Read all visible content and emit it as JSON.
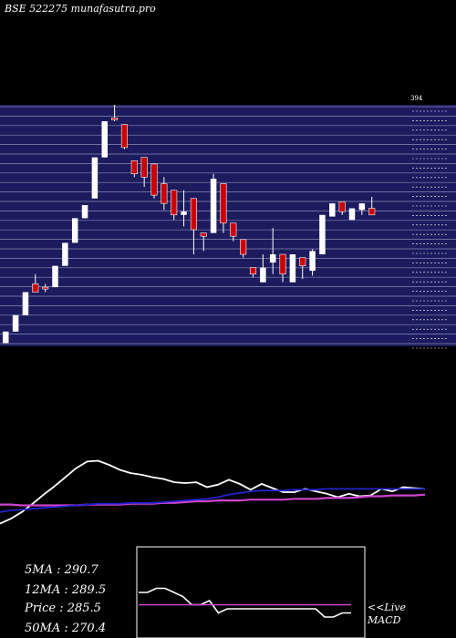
{
  "header": {
    "label": "BSE 522275 munafasutra.pro"
  },
  "colors": {
    "background": "#000000",
    "price_panel": "#1b1b5e",
    "grid_line": "#8a8ab5",
    "up_candle": "#ffffff",
    "down_candle": "#cc0000",
    "price_line": "#ffffff",
    "ma_long": "#cc44cc",
    "ma_mid": "#2222cc",
    "macd_signal": "#cc44cc",
    "macd_box_border": "#ffffff"
  },
  "stats": {
    "ma5": "5MA : 290.7",
    "ma12": "12MA : 289.5",
    "price": "Price   : 285.5",
    "ma50": "50MA : 270.4"
  },
  "macd_panel": {
    "live_label": "<<Live",
    "macd_label": "MACD"
  },
  "chart_data": [
    {
      "type": "candlestick",
      "title": "",
      "price_range": [
        247,
        394
      ],
      "top_tick_label": "394",
      "candles": [
        {
          "o": 249,
          "h": 256,
          "l": 249,
          "c": 256,
          "dir": "up"
        },
        {
          "o": 256,
          "h": 266,
          "l": 256,
          "c": 266,
          "dir": "up"
        },
        {
          "o": 266,
          "h": 280,
          "l": 266,
          "c": 280,
          "dir": "up"
        },
        {
          "o": 280,
          "h": 291,
          "l": 280,
          "c": 285,
          "dir": "down"
        },
        {
          "o": 283,
          "h": 285,
          "l": 280,
          "c": 283,
          "dir": "down"
        },
        {
          "o": 283,
          "h": 296,
          "l": 283,
          "c": 296,
          "dir": "up"
        },
        {
          "o": 296,
          "h": 310,
          "l": 296,
          "c": 310,
          "dir": "up"
        },
        {
          "o": 310,
          "h": 325,
          "l": 310,
          "c": 325,
          "dir": "up"
        },
        {
          "o": 325,
          "h": 333,
          "l": 325,
          "c": 333,
          "dir": "up"
        },
        {
          "o": 337,
          "h": 362,
          "l": 337,
          "c": 362,
          "dir": "up"
        },
        {
          "o": 362,
          "h": 384,
          "l": 362,
          "c": 384,
          "dir": "up"
        },
        {
          "o": 386,
          "h": 394,
          "l": 384,
          "c": 386,
          "dir": "down"
        },
        {
          "o": 382,
          "h": 382,
          "l": 367,
          "c": 368,
          "dir": "down"
        },
        {
          "o": 360,
          "h": 360,
          "l": 350,
          "c": 352,
          "dir": "down"
        },
        {
          "o": 362,
          "h": 362,
          "l": 344,
          "c": 350,
          "dir": "down"
        },
        {
          "o": 358,
          "h": 358,
          "l": 337,
          "c": 339,
          "dir": "down"
        },
        {
          "o": 346,
          "h": 350,
          "l": 330,
          "c": 334,
          "dir": "down"
        },
        {
          "o": 342,
          "h": 342,
          "l": 324,
          "c": 327,
          "dir": "down"
        },
        {
          "o": 327,
          "h": 342,
          "l": 320,
          "c": 329,
          "dir": "up"
        },
        {
          "o": 337,
          "h": 337,
          "l": 303,
          "c": 318,
          "dir": "down"
        },
        {
          "o": 316,
          "h": 316,
          "l": 305,
          "c": 314,
          "dir": "down"
        },
        {
          "o": 316,
          "h": 352,
          "l": 316,
          "c": 349,
          "dir": "up"
        },
        {
          "o": 346,
          "h": 346,
          "l": 316,
          "c": 322,
          "dir": "down"
        },
        {
          "o": 322,
          "h": 322,
          "l": 311,
          "c": 314,
          "dir": "down"
        },
        {
          "o": 312,
          "h": 312,
          "l": 301,
          "c": 303,
          "dir": "down"
        },
        {
          "o": 295,
          "h": 295,
          "l": 289,
          "c": 291,
          "dir": "down"
        },
        {
          "o": 286,
          "h": 303,
          "l": 286,
          "c": 295,
          "dir": "up"
        },
        {
          "o": 303,
          "h": 319,
          "l": 291,
          "c": 298,
          "dir": "up"
        },
        {
          "o": 303,
          "h": 303,
          "l": 286,
          "c": 291,
          "dir": "down"
        },
        {
          "o": 286,
          "h": 303,
          "l": 286,
          "c": 303,
          "dir": "up"
        },
        {
          "o": 301,
          "h": 301,
          "l": 288,
          "c": 296,
          "dir": "down"
        },
        {
          "o": 293,
          "h": 306,
          "l": 290,
          "c": 305,
          "dir": "up"
        },
        {
          "o": 303,
          "h": 327,
          "l": 303,
          "c": 327,
          "dir": "up"
        },
        {
          "o": 326,
          "h": 334,
          "l": 326,
          "c": 334,
          "dir": "up"
        },
        {
          "o": 335,
          "h": 335,
          "l": 327,
          "c": 329,
          "dir": "down"
        },
        {
          "o": 324,
          "h": 331,
          "l": 324,
          "c": 331,
          "dir": "up"
        },
        {
          "o": 334,
          "h": 334,
          "l": 327,
          "c": 330,
          "dir": "up"
        },
        {
          "o": 331,
          "h": 338,
          "l": 327,
          "c": 327,
          "dir": "down"
        }
      ]
    },
    {
      "type": "line",
      "title": "",
      "y_range": [
        220,
        330
      ],
      "series": [
        {
          "role": "price",
          "values": [
            248,
            254,
            262,
            272,
            283,
            293,
            304,
            315,
            323,
            324,
            319,
            313,
            309,
            307,
            304,
            302,
            298,
            297,
            298,
            292,
            295,
            301,
            296,
            289,
            296,
            291,
            286,
            286,
            290,
            287,
            284,
            280,
            284,
            281,
            282,
            290,
            287,
            292,
            291,
            290
          ]
        },
        {
          "role": "ma-long",
          "values": [
            271,
            271,
            270,
            270,
            270,
            270,
            270,
            270,
            271,
            271,
            271,
            271,
            272,
            272,
            272,
            273,
            273,
            274,
            275,
            275,
            276,
            276,
            276,
            277,
            277,
            277,
            277,
            278,
            278,
            278,
            279,
            279,
            279,
            280,
            281,
            281,
            282,
            282,
            282,
            283
          ]
        },
        {
          "role": "ma-mid",
          "values": [
            262,
            264,
            265,
            266,
            267,
            268,
            269,
            270,
            271,
            272,
            272,
            272,
            273,
            273,
            273,
            274,
            275,
            276,
            277,
            278,
            280,
            283,
            285,
            287,
            288,
            288,
            288,
            289,
            289,
            289,
            290,
            290,
            290,
            290,
            290,
            290,
            290,
            290,
            290,
            290
          ]
        }
      ]
    },
    {
      "type": "line",
      "title": "",
      "y_range": [
        -10,
        10
      ],
      "series": [
        {
          "role": "macd",
          "values": [
            0,
            0,
            1,
            1,
            0,
            -1,
            -3,
            -3,
            -2,
            -5,
            -4,
            -4,
            -4,
            -4,
            -4,
            -4,
            -4,
            -4,
            -4,
            -4,
            -4,
            -6,
            -6,
            -5,
            -5
          ]
        },
        {
          "role": "signal",
          "values": [
            -3,
            -3,
            -3,
            -3,
            -3,
            -3,
            -3,
            -3,
            -3,
            -3,
            -3,
            -3,
            -3,
            -3,
            -3,
            -3,
            -3,
            -3,
            -3,
            -3,
            -3,
            -3,
            -3,
            -3,
            -3
          ]
        }
      ]
    }
  ]
}
